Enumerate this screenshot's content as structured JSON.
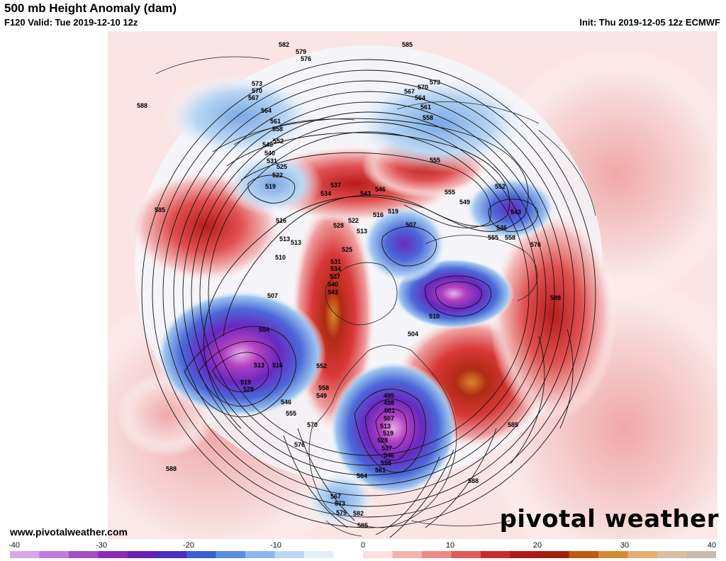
{
  "header": {
    "title": "500 mb Height Anomaly (dam)",
    "valid": "F120 Valid: Tue 2019-12-10 12z",
    "init": "Init: Thu 2019-12-05 12z ECMWF"
  },
  "footer": {
    "website": "www.pivotalweather.com",
    "brand": "pivotal weather"
  },
  "colorbar": {
    "ticks": [
      "-40",
      "-30",
      "-20",
      "-10",
      "0",
      "10",
      "20",
      "30",
      "40"
    ],
    "min": -40,
    "max": 40,
    "colors": [
      "#d8a6e8",
      "#c07ad8",
      "#a24fc8",
      "#8a2bb8",
      "#6a1fb0",
      "#4a2fc0",
      "#3a5fd0",
      "#5a8ee0",
      "#8ab8ec",
      "#bcd8f4",
      "#e4eefa",
      "#ffffff",
      "#fbe0e0",
      "#f4b4b4",
      "#ec8888",
      "#e05a5a",
      "#cc2a2a",
      "#b01818",
      "#a02010",
      "#c05a10",
      "#d88a30",
      "#e4b070",
      "#d8c0a0",
      "#c8b8b0"
    ]
  },
  "map": {
    "anomalies": [
      {
        "name": "gulf-of-alaska-trough",
        "sign": "negative",
        "strength": "strong"
      },
      {
        "name": "eastern-canada-trough",
        "sign": "negative",
        "strength": "strong"
      },
      {
        "name": "siberia-arctic-trough",
        "sign": "negative",
        "strength": "strong"
      },
      {
        "name": "western-north-america-ridge",
        "sign": "positive",
        "strength": "strong"
      },
      {
        "name": "north-atlantic-ridge",
        "sign": "positive",
        "strength": "strong"
      },
      {
        "name": "north-pacific-ridge",
        "sign": "positive",
        "strength": "moderate"
      },
      {
        "name": "japan-trough",
        "sign": "negative",
        "strength": "moderate"
      }
    ],
    "contour_labels": [
      "582",
      "579",
      "576",
      "573",
      "570",
      "567",
      "564",
      "561",
      "558",
      "555",
      "552",
      "549",
      "546",
      "543",
      "540",
      "537",
      "534",
      "531",
      "528",
      "525",
      "522",
      "519",
      "516",
      "513",
      "510",
      "507",
      "504",
      "501",
      "498",
      "585",
      "588"
    ]
  }
}
